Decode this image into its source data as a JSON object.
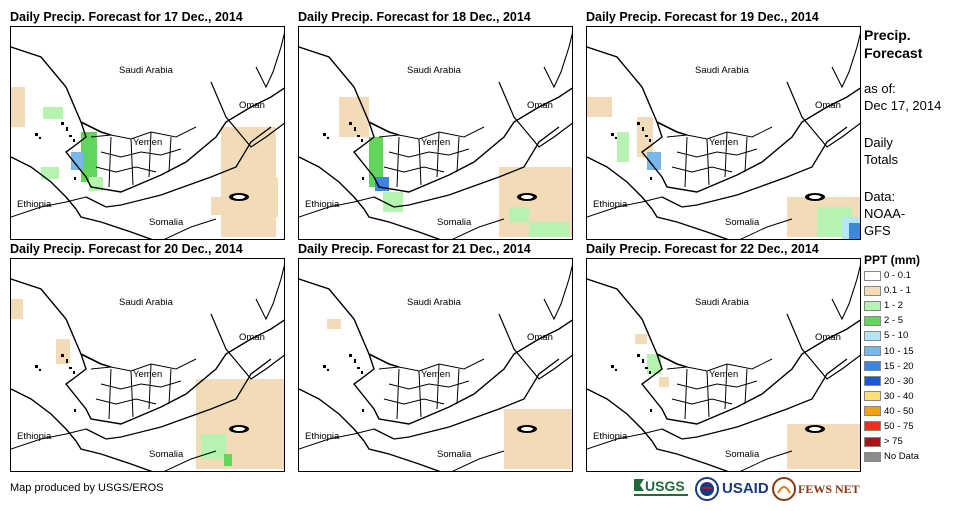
{
  "panels": [
    {
      "title": "Daily Precip. Forecast for 17 Dec., 2014"
    },
    {
      "title": "Daily Precip. Forecast for 18 Dec., 2014"
    },
    {
      "title": "Daily Precip. Forecast for 19 Dec., 2014"
    },
    {
      "title": "Daily Precip. Forecast for 20 Dec., 2014"
    },
    {
      "title": "Daily Precip. Forecast for 21 Dec., 2014"
    },
    {
      "title": "Daily Precip. Forecast for 22 Dec., 2014"
    }
  ],
  "map_labels": {
    "saudi": "Saudi Arabia",
    "oman": "Oman",
    "yemen": "Yemen",
    "ethiopia": "Ethiopia",
    "somalia": "Somalia"
  },
  "side": {
    "title_line1": "Precip.",
    "title_line2": "Forecast",
    "asof_line1": "as of:",
    "asof_line2": "Dec 17, 2014",
    "totals_line1": "Daily",
    "totals_line2": "Totals",
    "data_line1": "Data:",
    "data_line2": "NOAA-",
    "data_line3": "GFS"
  },
  "legend": {
    "title": "PPT (mm)",
    "items": [
      {
        "label": "0 - 0.1",
        "color": "#ffffff"
      },
      {
        "label": "0.1 - 1",
        "color": "#f2dcb8"
      },
      {
        "label": "1 - 2",
        "color": "#b6f2b0"
      },
      {
        "label": "2 - 5",
        "color": "#62d65a"
      },
      {
        "label": "5 - 10",
        "color": "#b5e6f7"
      },
      {
        "label": "10 - 15",
        "color": "#7ab7e8"
      },
      {
        "label": "15 - 20",
        "color": "#3c86e0"
      },
      {
        "label": "20 - 30",
        "color": "#1858d6"
      },
      {
        "label": "30 - 40",
        "color": "#fbe07a"
      },
      {
        "label": "40 - 50",
        "color": "#f5a20a"
      },
      {
        "label": "50 - 75",
        "color": "#e8321a"
      },
      {
        "label": "> 75",
        "color": "#a11a1a"
      },
      {
        "label": "No Data",
        "color": "#8c8c8c"
      }
    ]
  },
  "credit": "Map produced by USGS/EROS",
  "logos": {
    "usgs": "USGS",
    "usaid": "USAID",
    "fews": "FEWS NET"
  }
}
